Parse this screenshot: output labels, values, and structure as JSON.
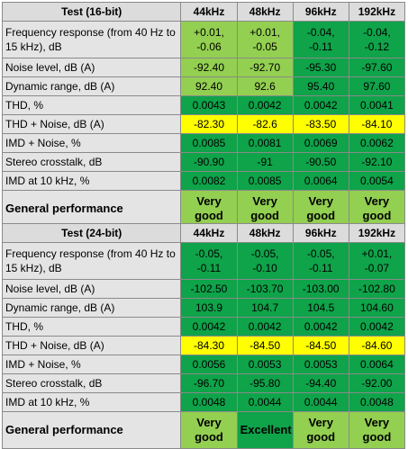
{
  "colors": {
    "dark_green": "#0fa34a",
    "light_green": "#93cf50",
    "yellow": "#ffff00",
    "header_gray": "#dcdcdc",
    "label_gray": "#e4e4e4"
  },
  "tables": [
    {
      "title": "Test (16-bit)",
      "columns": [
        "44kHz",
        "48kHz",
        "96kHz",
        "192kHz"
      ],
      "rows": [
        {
          "label": "Frequency response (from 40 Hz to 15 kHz), dB",
          "values": [
            "+0.01, -0.06",
            "+0.01, -0.05",
            "-0.04, -0.11",
            "-0.04, -0.12"
          ],
          "colors": [
            "light_green",
            "light_green",
            "dark_green",
            "dark_green"
          ]
        },
        {
          "label": "Noise level, dB (A)",
          "values": [
            "-92.40",
            "-92.70",
            "-95.30",
            "-97.60"
          ],
          "colors": [
            "light_green",
            "light_green",
            "dark_green",
            "dark_green"
          ]
        },
        {
          "label": "Dynamic range, dB (A)",
          "values": [
            "92.40",
            "92.6",
            "95.40",
            "97.60"
          ],
          "colors": [
            "light_green",
            "light_green",
            "dark_green",
            "dark_green"
          ]
        },
        {
          "label": "THD, %",
          "values": [
            "0.0043",
            "0.0042",
            "0.0042",
            "0.0041"
          ],
          "colors": [
            "dark_green",
            "dark_green",
            "dark_green",
            "dark_green"
          ]
        },
        {
          "label": "THD + Noise, dB (A)",
          "values": [
            "-82.30",
            "-82.6",
            "-83.50",
            "-84.10"
          ],
          "colors": [
            "yellow",
            "yellow",
            "yellow",
            "yellow"
          ]
        },
        {
          "label": "IMD + Noise, %",
          "values": [
            "0.0085",
            "0.0081",
            "0.0069",
            "0.0062"
          ],
          "colors": [
            "dark_green",
            "dark_green",
            "dark_green",
            "dark_green"
          ]
        },
        {
          "label": "Stereo crosstalk, dB",
          "values": [
            "-90.90",
            "-91",
            "-90.50",
            "-92.10"
          ],
          "colors": [
            "dark_green",
            "dark_green",
            "dark_green",
            "dark_green"
          ]
        },
        {
          "label": "IMD at 10 kHz, %",
          "values": [
            "0.0082",
            "0.0085",
            "0.0064",
            "0.0054"
          ],
          "colors": [
            "dark_green",
            "dark_green",
            "dark_green",
            "dark_green"
          ]
        }
      ],
      "general": {
        "label": "General performance",
        "values": [
          "Very good",
          "Very good",
          "Very good",
          "Very good"
        ],
        "colors": [
          "light_green",
          "light_green",
          "light_green",
          "light_green"
        ]
      }
    },
    {
      "title": "Test (24-bit)",
      "columns": [
        "44kHz",
        "48kHz",
        "96kHz",
        "192kHz"
      ],
      "rows": [
        {
          "label": "Frequency response (from 40 Hz to 15 kHz), dB",
          "values": [
            "-0.05, -0.11",
            "-0.05, -0.10",
            "-0.05, -0.11",
            "+0.01, -0.07"
          ],
          "colors": [
            "dark_green",
            "dark_green",
            "dark_green",
            "dark_green"
          ]
        },
        {
          "label": "Noise level, dB (A)",
          "values": [
            "-102.50",
            "-103.70",
            "-103.00",
            "-102.80"
          ],
          "colors": [
            "dark_green",
            "dark_green",
            "dark_green",
            "dark_green"
          ]
        },
        {
          "label": "Dynamic range, dB (A)",
          "values": [
            "103.9",
            "104.7",
            "104.5",
            "104.60"
          ],
          "colors": [
            "dark_green",
            "dark_green",
            "dark_green",
            "dark_green"
          ]
        },
        {
          "label": "THD, %",
          "values": [
            "0.0042",
            "0.0042",
            "0.0042",
            "0.0042"
          ],
          "colors": [
            "dark_green",
            "dark_green",
            "dark_green",
            "dark_green"
          ]
        },
        {
          "label": "THD + Noise, dB (A)",
          "values": [
            "-84.30",
            "-84.50",
            "-84.50",
            "-84.60"
          ],
          "colors": [
            "yellow",
            "yellow",
            "yellow",
            "yellow"
          ]
        },
        {
          "label": "IMD + Noise, %",
          "values": [
            "0.0056",
            "0.0053",
            "0.0053",
            "0.0064"
          ],
          "colors": [
            "dark_green",
            "dark_green",
            "dark_green",
            "dark_green"
          ]
        },
        {
          "label": "Stereo crosstalk, dB",
          "values": [
            "-96.70",
            "-95.80",
            "-94.40",
            "-92.00"
          ],
          "colors": [
            "dark_green",
            "dark_green",
            "dark_green",
            "dark_green"
          ]
        },
        {
          "label": "IMD at 10 kHz, %",
          "values": [
            "0.0048",
            "0.0044",
            "0.0044",
            "0.0048"
          ],
          "colors": [
            "dark_green",
            "dark_green",
            "dark_green",
            "dark_green"
          ]
        }
      ],
      "general": {
        "label": "General performance",
        "values": [
          "Very good",
          "Excellent",
          "Very good",
          "Very good"
        ],
        "colors": [
          "light_green",
          "dark_green",
          "light_green",
          "light_green"
        ]
      }
    }
  ]
}
